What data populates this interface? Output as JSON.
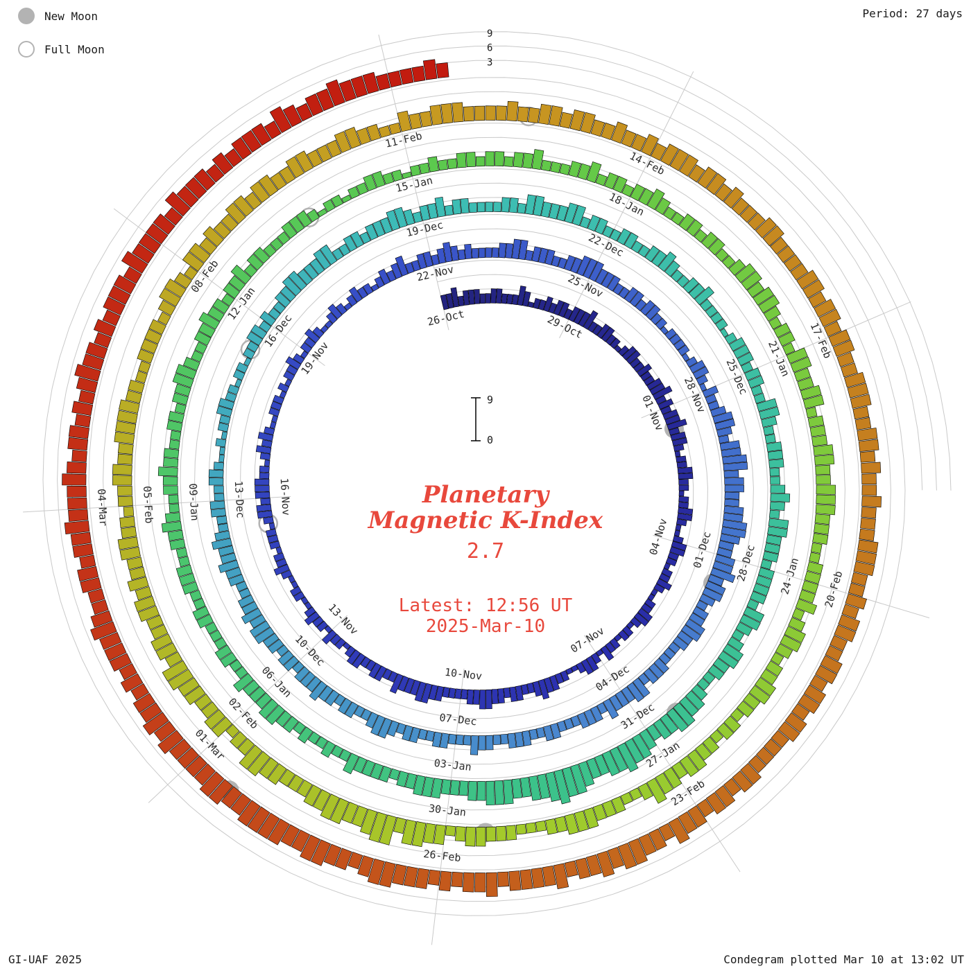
{
  "header": {
    "period_label": "Period: 27 days"
  },
  "legend": {
    "new_moon": "New Moon",
    "full_moon": "Full Moon"
  },
  "footer": {
    "credit": "GI-UAF 2025",
    "plotted": "Condegram plotted Mar 10 at 13:02 UT"
  },
  "center": {
    "title_line1": "Planetary",
    "title_line2": "Magnetic K-Index",
    "current_k": "2.7",
    "latest_line1": "Latest: 12:56 UT",
    "latest_line2": "2025-Mar-10"
  },
  "scale": {
    "outer_ticks": [
      {
        "k": 9,
        "label": "9"
      },
      {
        "k": 6,
        "label": "6"
      },
      {
        "k": 3,
        "label": "3"
      }
    ],
    "center_top": "9",
    "center_bottom": "0"
  },
  "colors": {
    "accent_text": "#e8483c",
    "grid": "#c9c9c9",
    "moon": "#b3b3b3",
    "label_text": "#2b2b2b",
    "bar_outline": "#000000"
  },
  "chart_data": {
    "type": "spiral_bar",
    "title": "Planetary Magnetic K-Index",
    "start_date": "26-Oct",
    "end_date": "2025-Mar-10",
    "period_days": 27,
    "samples_per_day": 8,
    "k_scale": [
      0,
      9
    ],
    "grid_levels": [
      3,
      6,
      9
    ],
    "date_labels": [
      "26-Oct",
      "29-Oct",
      "01-Nov",
      "04-Nov",
      "07-Nov",
      "10-Nov",
      "13-Nov",
      "16-Nov",
      "19-Nov",
      "22-Nov",
      "25-Nov",
      "28-Nov",
      "01-Dec",
      "04-Dec",
      "07-Dec",
      "10-Dec",
      "13-Dec",
      "16-Dec",
      "19-Dec",
      "22-Dec",
      "25-Dec",
      "28-Dec",
      "31-Dec",
      "03-Jan",
      "06-Jan",
      "09-Jan",
      "12-Jan",
      "15-Jan",
      "18-Jan",
      "21-Jan",
      "24-Jan",
      "27-Jan",
      "30-Jan",
      "02-Feb",
      "05-Feb",
      "08-Feb",
      "11-Feb",
      "14-Feb",
      "17-Feb",
      "20-Feb",
      "23-Feb",
      "26-Feb",
      "01-Mar",
      "04-Mar"
    ],
    "label_every_days": 3,
    "k_by_day": [
      "33423332",
      "23322243",
      "12232332",
      "33342233",
      "22123322",
      "32233423",
      "23342332",
      "12233221",
      "22332112",
      "33221223",
      "21122332",
      "12212231",
      "23321122",
      "33432233",
      "23344332",
      "22233443",
      "33422332",
      "23321223",
      "12232112",
      "21123221",
      "22212332",
      "33322123",
      "23211222",
      "12122321",
      "22321123",
      "21232212",
      "32342233",
      "23432322",
      "22334423",
      "33223344",
      "43332233",
      "23322122",
      "22123321",
      "32234432",
      "44553443",
      "34455433",
      "44534432",
      "33443322",
      "23332443",
      "33423332",
      "22332233",
      "32233422",
      "23322332",
      "34432233",
      "23343332",
      "33233443",
      "43322334",
      "33432233",
      "22332112",
      "12233221",
      "22122332",
      "32233443",
      "33442233",
      "23334432",
      "33423322",
      "22332443",
      "33442332",
      "23322334",
      "32233422",
      "22123332",
      "33224432",
      "23332234",
      "32443332",
      "33332443",
      "23443322",
      "34455443",
      "45565544",
      "56676554",
      "45554433",
      "34443323",
      "33342232",
      "23233443",
      "33422332",
      "22332233",
      "32233432",
      "23343322",
      "33233443",
      "22334332",
      "33423322",
      "23332122",
      "12233221",
      "22322332",
      "33233422",
      "23342332",
      "33432233",
      "23322344",
      "34432332",
      "44334423",
      "33443344",
      "43332233",
      "33423443",
      "23344332",
      "33233443",
      "44532233",
      "34443322",
      "23334432",
      "44553665",
      "44554433",
      "34455332",
      "44334455",
      "34433443",
      "43344332",
      "33443344",
      "44332233",
      "33234432",
      "44343344",
      "34433443",
      "33443322",
      "43344433",
      "33433443",
      "44334334",
      "34443443",
      "43334433",
      "33443443",
      "44334443",
      "34434334",
      "33344433",
      "43443344",
      "34434433",
      "33443443",
      "44534455",
      "45443544",
      "44354434",
      "34445543",
      "44554455",
      "55445544",
      "44545443",
      "43444543",
      "34434454",
      "44543443",
      "43454434",
      "34443544",
      "44354443",
      "43444354",
      "34454443",
      "33343"
    ],
    "new_moon_days": [
      6,
      36,
      65,
      95,
      125
    ],
    "full_moon_days": [
      20,
      50,
      79,
      109
    ],
    "color_stops": [
      [
        0,
        "#23237f"
      ],
      [
        12,
        "#2b2fae"
      ],
      [
        26,
        "#3850c8"
      ],
      [
        40,
        "#4a86cf"
      ],
      [
        54,
        "#3dbdb6"
      ],
      [
        68,
        "#3cc289"
      ],
      [
        82,
        "#5ec94b"
      ],
      [
        95,
        "#a3cb2b"
      ],
      [
        108,
        "#c79b21"
      ],
      [
        121,
        "#c4671d"
      ],
      [
        128,
        "#c43418"
      ],
      [
        136,
        "#c2190e"
      ]
    ]
  }
}
